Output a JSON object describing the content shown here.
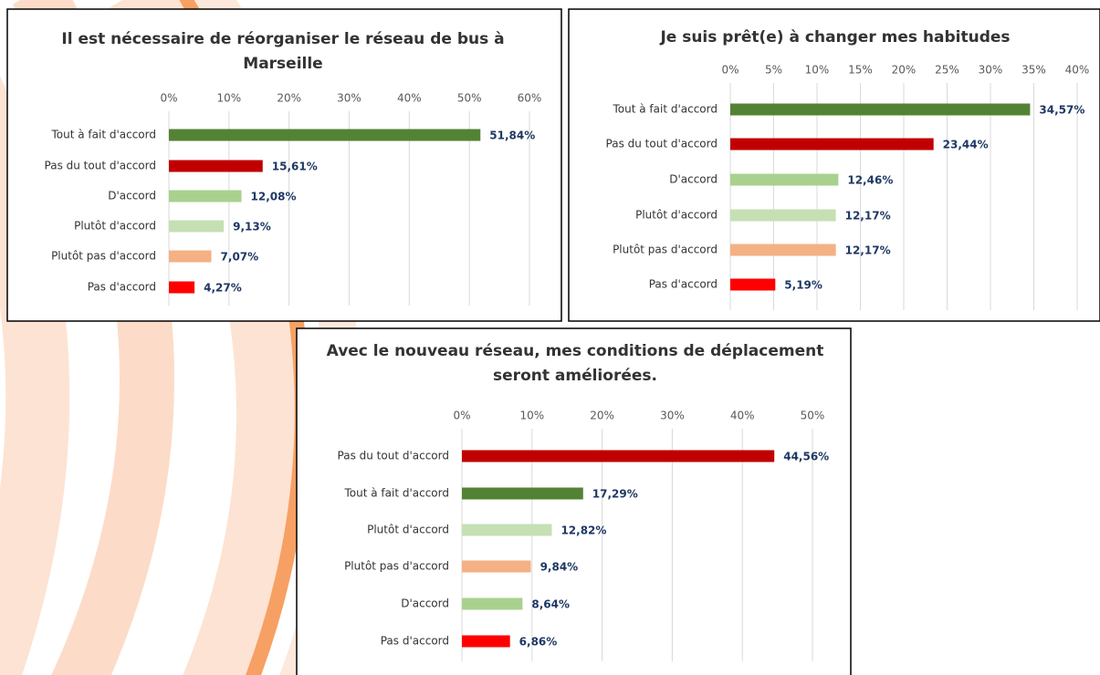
{
  "chart_data": [
    {
      "type": "bar",
      "title": "Il est nécessaire de réorganiser le réseau de bus à Marseille",
      "categories": [
        "Tout à fait d'accord",
        "Pas du tout d'accord",
        "D'accord",
        "Plutôt d'accord",
        "Plutôt pas d'accord",
        "Pas d'accord"
      ],
      "values": [
        51.84,
        15.61,
        12.08,
        9.13,
        7.07,
        4.27
      ],
      "value_labels": [
        "51,84%",
        "15,61%",
        "12,08%",
        "9,13%",
        "7,07%",
        "4,27%"
      ],
      "colors": [
        "#548235",
        "#c00000",
        "#a9d18e",
        "#c5e0b4",
        "#f4b183",
        "#ff0000"
      ],
      "xlim": [
        0,
        60
      ],
      "xticks": [
        {
          "value": 0,
          "label": "0%"
        },
        {
          "value": 10,
          "label": "10%"
        },
        {
          "value": 20,
          "label": "20%"
        },
        {
          "value": 30,
          "label": "30%"
        },
        {
          "value": 40,
          "label": "40%"
        },
        {
          "value": 50,
          "label": "50%"
        },
        {
          "value": 60,
          "label": "60%"
        }
      ],
      "grid": true
    },
    {
      "type": "bar",
      "title": "Je suis prêt(e) à changer mes habitudes",
      "categories": [
        "Tout à fait d'accord",
        "Pas du tout d'accord",
        "D'accord",
        "Plutôt d'accord",
        "Plutôt pas d'accord",
        "Pas d'accord"
      ],
      "values": [
        34.57,
        23.44,
        12.46,
        12.17,
        12.17,
        5.19
      ],
      "value_labels": [
        "34,57%",
        "23,44%",
        "12,46%",
        "12,17%",
        "12,17%",
        "5,19%"
      ],
      "colors": [
        "#548235",
        "#c00000",
        "#a9d18e",
        "#c5e0b4",
        "#f4b183",
        "#ff0000"
      ],
      "xlim": [
        0,
        40
      ],
      "xticks": [
        {
          "value": 0,
          "label": "0%"
        },
        {
          "value": 5,
          "label": "5%"
        },
        {
          "value": 10,
          "label": "10%"
        },
        {
          "value": 15,
          "label": "15%"
        },
        {
          "value": 20,
          "label": "20%"
        },
        {
          "value": 25,
          "label": "25%"
        },
        {
          "value": 30,
          "label": "30%"
        },
        {
          "value": 35,
          "label": "35%"
        },
        {
          "value": 40,
          "label": "40%"
        }
      ],
      "grid": true
    },
    {
      "type": "bar",
      "title": "Avec le nouveau réseau, mes conditions de déplacement seront améliorées.",
      "categories": [
        "Pas du tout d'accord",
        "Tout à fait d'accord",
        "Plutôt d'accord",
        "Plutôt pas d'accord",
        "D'accord",
        "Pas d'accord"
      ],
      "values": [
        44.56,
        17.29,
        12.82,
        9.84,
        8.64,
        6.86
      ],
      "value_labels": [
        "44,56%",
        "17,29%",
        "12,82%",
        "9,84%",
        "8,64%",
        "6,86%"
      ],
      "colors": [
        "#c00000",
        "#548235",
        "#c5e0b4",
        "#f4b183",
        "#a9d18e",
        "#ff0000"
      ],
      "xlim": [
        0,
        50
      ],
      "xticks": [
        {
          "value": 0,
          "label": "0%"
        },
        {
          "value": 10,
          "label": "10%"
        },
        {
          "value": 20,
          "label": "20%"
        },
        {
          "value": 30,
          "label": "30%"
        },
        {
          "value": 40,
          "label": "40%"
        },
        {
          "value": 50,
          "label": "50%"
        }
      ],
      "grid": true
    }
  ]
}
